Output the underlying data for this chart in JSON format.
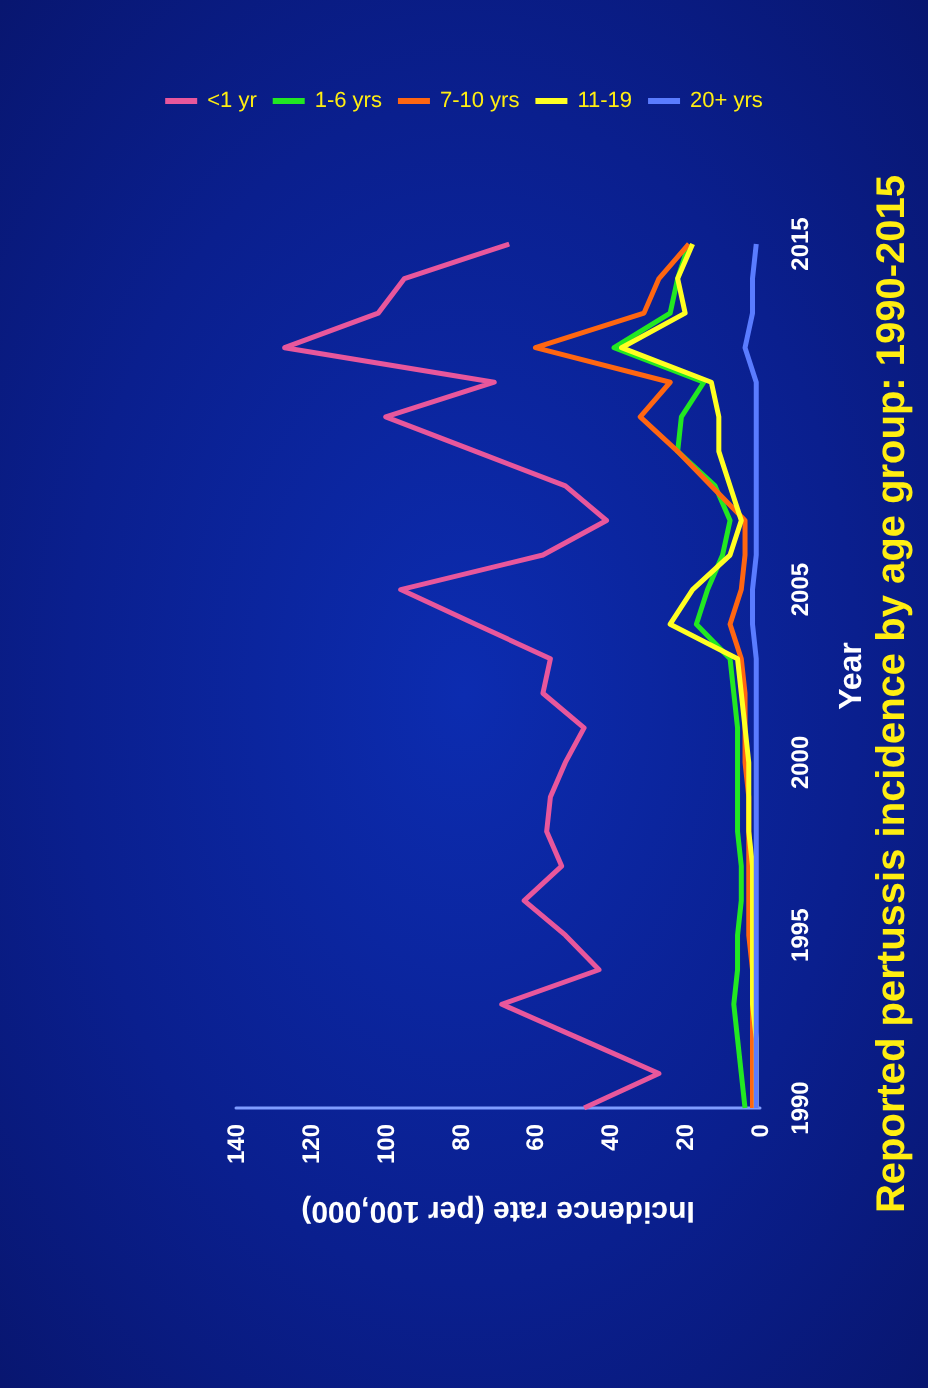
{
  "chart_data": {
    "type": "line",
    "title": "Reported pertussis incidence by age group: 1990-2015",
    "xlabel": "Incidence rate (per 100,000)",
    "ylabel": "Year",
    "series": [
      {
        "name": "<1 yr",
        "color": "#e8579c",
        "x": [
          47,
          27,
          48,
          69,
          43,
          52,
          63,
          53,
          57,
          56,
          52,
          47,
          58,
          56,
          76,
          96,
          58,
          41,
          52,
          76,
          100,
          71,
          127,
          102,
          95,
          67
        ],
        "values": [
          1990,
          1991,
          1992,
          1993,
          1994,
          1995,
          1996,
          1997,
          1998,
          1999,
          2000,
          2001,
          2002,
          2003,
          2004,
          2005,
          2006,
          2007,
          2008,
          2009,
          2010,
          2011,
          2012,
          2013,
          2014,
          2015
        ]
      },
      {
        "name": "1-6 yrs",
        "color": "#22e822",
        "x": [
          4,
          5,
          6,
          7,
          6,
          6,
          5,
          5,
          6,
          6,
          6,
          6,
          7,
          8,
          17,
          14,
          10,
          8,
          12,
          22,
          21,
          15,
          39,
          24,
          22,
          19
        ],
        "values": [
          1990,
          1991,
          1992,
          1993,
          1994,
          1995,
          1996,
          1997,
          1998,
          1999,
          2000,
          2001,
          2002,
          2003,
          2004,
          2005,
          2006,
          2007,
          2008,
          2009,
          2010,
          2011,
          2012,
          2013,
          2014,
          2015
        ]
      },
      {
        "name": "7-10 yrs",
        "color": "#ff6611",
        "x": [
          2,
          2,
          2,
          2,
          2,
          3,
          3,
          3,
          3,
          3,
          4,
          4,
          4,
          5,
          8,
          5,
          4,
          4,
          13,
          22,
          32,
          24,
          60,
          31,
          27,
          19
        ],
        "values": [
          1990,
          1991,
          1992,
          1993,
          1994,
          1995,
          1996,
          1997,
          1998,
          1999,
          2000,
          2001,
          2002,
          2003,
          2004,
          2005,
          2006,
          2007,
          2008,
          2009,
          2010,
          2011,
          2012,
          2013,
          2014,
          2015
        ]
      },
      {
        "name": "11-19",
        "color": "#ffff22",
        "x": [
          1,
          1,
          1,
          2,
          2,
          2,
          2,
          2,
          3,
          3,
          3,
          4,
          5,
          6,
          24,
          18,
          8,
          5,
          8,
          11,
          11,
          13,
          37,
          20,
          22,
          18
        ],
        "values": [
          1990,
          1991,
          1992,
          1993,
          1994,
          1995,
          1996,
          1997,
          1998,
          1999,
          2000,
          2001,
          2002,
          2003,
          2004,
          2005,
          2006,
          2007,
          2008,
          2009,
          2010,
          2011,
          2012,
          2013,
          2014,
          2015
        ]
      },
      {
        "name": "20+ yrs",
        "color": "#5a7cff",
        "x": [
          1,
          1,
          1,
          1,
          1,
          1,
          1,
          1,
          1,
          1,
          1,
          1,
          1,
          1,
          2,
          2,
          1,
          1,
          1,
          1,
          1,
          1,
          4,
          2,
          2,
          1
        ],
        "values": [
          1990,
          1991,
          1992,
          1993,
          1994,
          1995,
          1996,
          1997,
          1998,
          1999,
          2000,
          2001,
          2002,
          2003,
          2004,
          2005,
          2006,
          2007,
          2008,
          2009,
          2010,
          2011,
          2012,
          2013,
          2014,
          2015
        ]
      }
    ],
    "xlim": [
      140,
      0
    ],
    "xticks": [
      0,
      20,
      40,
      60,
      80,
      100,
      120,
      140
    ],
    "ylim": [
      1990,
      2015
    ],
    "yticks": [
      1990,
      1995,
      2000,
      2005,
      2015
    ],
    "grid": false,
    "legend": "top"
  }
}
